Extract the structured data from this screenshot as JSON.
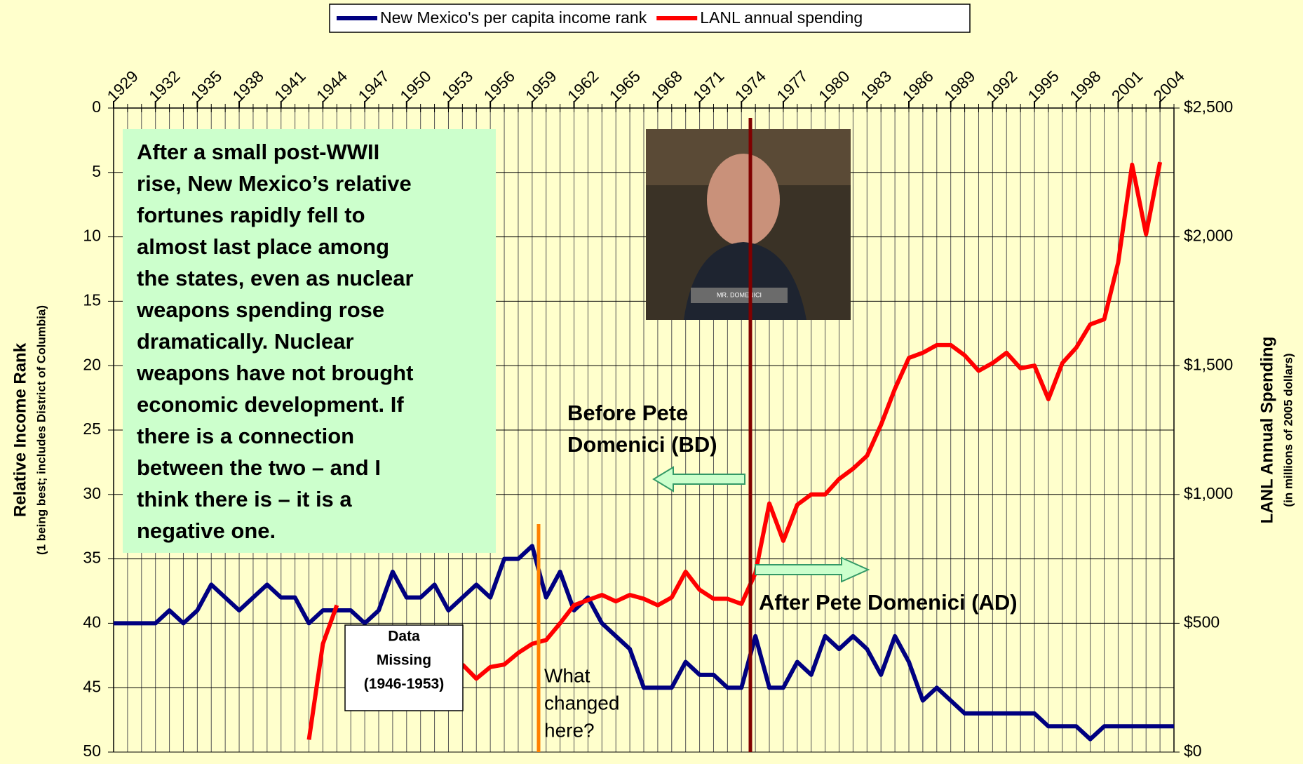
{
  "chart_data": {
    "type": "line",
    "x": [
      1929,
      1930,
      1931,
      1932,
      1933,
      1934,
      1935,
      1936,
      1937,
      1938,
      1939,
      1940,
      1941,
      1942,
      1943,
      1944,
      1945,
      1946,
      1947,
      1948,
      1949,
      1950,
      1951,
      1952,
      1953,
      1954,
      1955,
      1956,
      1957,
      1958,
      1959,
      1960,
      1961,
      1962,
      1963,
      1964,
      1965,
      1966,
      1967,
      1968,
      1969,
      1970,
      1971,
      1972,
      1973,
      1974,
      1975,
      1976,
      1977,
      1978,
      1979,
      1980,
      1981,
      1982,
      1983,
      1984,
      1985,
      1986,
      1987,
      1988,
      1989,
      1990,
      1991,
      1992,
      1993,
      1994,
      1995,
      1996,
      1997,
      1998,
      1999,
      2000,
      2001,
      2002,
      2003,
      2004,
      2005
    ],
    "series": [
      {
        "name": "New Mexico's per capita income rank",
        "color": "#000080",
        "axis": "y",
        "values": [
          40,
          40,
          40,
          40,
          39,
          40,
          39,
          37,
          38,
          39,
          38,
          37,
          38,
          38,
          40,
          39,
          39,
          39,
          40,
          39,
          36,
          38,
          38,
          37,
          39,
          38,
          37,
          38,
          35,
          35,
          34,
          38,
          36,
          39,
          38,
          40,
          41,
          42,
          45,
          45,
          45,
          43,
          44,
          44,
          45,
          45,
          41,
          45,
          45,
          43,
          44,
          41,
          42,
          41,
          42,
          44,
          41,
          43,
          46,
          45,
          46,
          47,
          47,
          47,
          47,
          47,
          47,
          48,
          48,
          48,
          49,
          48,
          48,
          48,
          48,
          48,
          48
        ]
      },
      {
        "name": "LANL annual spending",
        "color": "#ff0000",
        "axis": "y2",
        "values": [
          null,
          null,
          null,
          null,
          null,
          null,
          null,
          null,
          null,
          null,
          null,
          null,
          null,
          null,
          48,
          420,
          570,
          null,
          null,
          null,
          null,
          null,
          null,
          null,
          null,
          340,
          285,
          330,
          340,
          385,
          420,
          435,
          500,
          570,
          590,
          610,
          585,
          610,
          595,
          570,
          600,
          700,
          630,
          595,
          595,
          575,
          695,
          965,
          820,
          960,
          1000,
          1000,
          1060,
          1100,
          1150,
          1270,
          1410,
          1530,
          1550,
          1580,
          1580,
          1540,
          1480,
          1510,
          1550,
          1490,
          1500,
          1370,
          1510,
          1570,
          1660,
          1680,
          1900,
          2280,
          2010,
          2290,
          null
        ]
      }
    ],
    "xlim": [
      1929,
      2005
    ],
    "xticks": [
      1929,
      1932,
      1935,
      1938,
      1941,
      1944,
      1947,
      1950,
      1953,
      1956,
      1959,
      1962,
      1965,
      1968,
      1971,
      1974,
      1977,
      1980,
      1983,
      1986,
      1989,
      1992,
      1995,
      1998,
      2001,
      2004
    ],
    "ylim": [
      0,
      50
    ],
    "y_inverted": true,
    "yticks": [
      0,
      5,
      10,
      15,
      20,
      25,
      30,
      35,
      40,
      45,
      50
    ],
    "y2lim": [
      0,
      2500
    ],
    "y2ticks": [
      {
        "value": 0,
        "label": "$0"
      },
      {
        "value": 500,
        "label": "$500"
      },
      {
        "value": 1000,
        "label": "$1,000"
      },
      {
        "value": 1500,
        "label": "$1,500"
      },
      {
        "value": 2000,
        "label": "$2,000"
      },
      {
        "value": 2500,
        "label": "$2,500"
      }
    ],
    "ylabel": "Relative Income Rank",
    "ylabel_sub": "(1 being best; includes District of Columbia)",
    "y2label": "LANL Annual Spending",
    "y2label_sub": "(in millions of 2005 dollars)",
    "grid": true,
    "legend": "top",
    "annotations": {
      "commentary": [
        "After a small post-WWII",
        "rise, New Mexico’s relative",
        "fortunes rapidly fell to",
        "almost last place among",
        "the states, even as nuclear",
        "weapons spending rose",
        "dramatically.  Nuclear",
        "weapons have not brought",
        "economic development.  If",
        "there is a connection",
        "between the two – and I",
        "think there is – it is a",
        "negative one."
      ],
      "before": [
        "Before Pete",
        "Domenici (BD)"
      ],
      "after": "After Pete Domenici (AD)",
      "missing": [
        "Data",
        "Missing",
        "(1946-1953)"
      ],
      "changed": [
        "What",
        "changed",
        "here?"
      ],
      "photo_caption": "MR. DOMENICI"
    }
  }
}
